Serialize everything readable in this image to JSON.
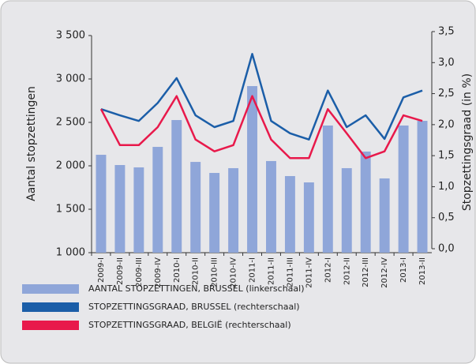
{
  "chart_data": {
    "type": "bar_line",
    "y_label": "Aantal stopzettingen",
    "y2_label": "Stopzettingsgraad (in %)",
    "categories": [
      "2009-I",
      "2009-II",
      "2009-III",
      "2009-IV",
      "2010-I",
      "2010-II",
      "2010-III",
      "2010-IV",
      "2011-I",
      "2011-II",
      "2011-III",
      "2011-IV",
      "2012-I",
      "2012-II",
      "2012-III",
      "2012-IV",
      "2013-I",
      "2013-II"
    ],
    "series": [
      {
        "name": "AANTAL STOPZETTINGEN, BRUSSEL (linkerschaal)",
        "type": "bar",
        "color": "#8fa6d9",
        "values": [
          2127,
          2009,
          1982,
          2218,
          2527,
          2045,
          1918,
          1973,
          2918,
          2055,
          1882,
          1809,
          2464,
          1973,
          2164,
          1855,
          2464,
          2518
        ]
      },
      {
        "name": "STOPZETTINGSGRAAD, BRUSSEL (rechterschaal)",
        "type": "line",
        "axis": "y2",
        "color": "#1b5ea8",
        "values": [
          2.25,
          2.15,
          2.06,
          2.35,
          2.75,
          2.15,
          1.96,
          2.06,
          3.14,
          2.06,
          1.86,
          1.76,
          2.55,
          1.96,
          2.15,
          1.77,
          2.44,
          2.55
        ]
      },
      {
        "name": "STOPZETTINGSGRAAD, BELGIË (rechterschaal)",
        "type": "line",
        "axis": "y2",
        "color": "#e8194b",
        "values": [
          2.25,
          1.67,
          1.67,
          1.96,
          2.46,
          1.76,
          1.57,
          1.67,
          2.46,
          1.76,
          1.46,
          1.46,
          2.25,
          1.86,
          1.46,
          1.57,
          2.15,
          2.06
        ]
      }
    ],
    "ylim": [
      1000,
      3500
    ],
    "yticks": [
      {
        "value": 1000,
        "label": "1 000"
      },
      {
        "value": 1500,
        "label": "1 500"
      },
      {
        "value": 2000,
        "label": "2 000"
      },
      {
        "value": 2500,
        "label": "2 500"
      },
      {
        "value": 3000,
        "label": "3 000"
      },
      {
        "value": 3500,
        "label": "3 500"
      }
    ],
    "y2lim": [
      0,
      3.5
    ],
    "y2ticks": [
      {
        "value": 0,
        "label": "0,0"
      },
      {
        "value": 0.5,
        "label": "0,5"
      },
      {
        "value": 1,
        "label": "1,0"
      },
      {
        "value": 1.5,
        "label": "1,5"
      },
      {
        "value": 2,
        "label": "2,0"
      },
      {
        "value": 2.5,
        "label": "2,5"
      },
      {
        "value": 3,
        "label": "3,0"
      },
      {
        "value": 3.5,
        "label": "3,5"
      }
    ]
  }
}
